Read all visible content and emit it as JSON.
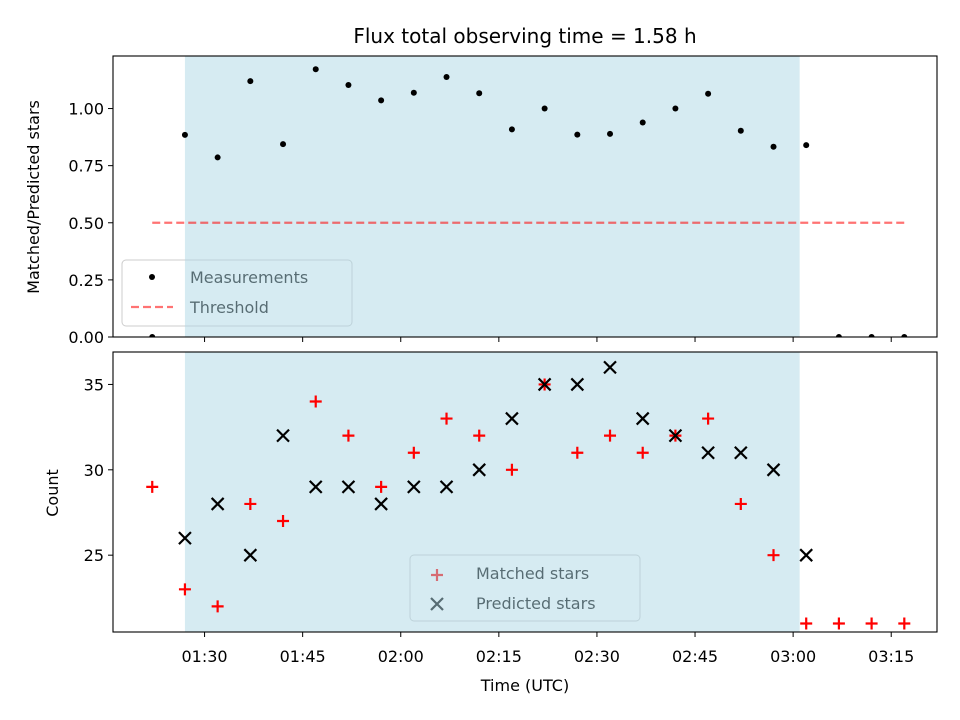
{
  "title": "Flux total observing time = 1.58 h",
  "colors": {
    "shade": "#add8e6",
    "threshold": "#ff0000",
    "measurement": "#000000",
    "matched": "#ff0000",
    "predicted": "#000000"
  },
  "chart_data": [
    {
      "type": "scatter",
      "ylabel": "Matched/Predicted stars",
      "ylim": [
        0.0,
        1.23
      ],
      "xlim": [
        "01:16",
        "03:22"
      ],
      "yticks": [
        0.0,
        0.25,
        0.5,
        0.75,
        1.0
      ],
      "ytick_labels": [
        "0.00",
        "0.25",
        "0.50",
        "0.75",
        "1.00"
      ],
      "shaded_span": [
        "01:27",
        "03:01"
      ],
      "legend_position": "lower-left",
      "series": [
        {
          "name": "Measurements",
          "marker": "dot",
          "x": [
            "01:22",
            "01:27",
            "01:32",
            "01:37",
            "01:42",
            "01:47",
            "01:52",
            "01:57",
            "02:02",
            "02:07",
            "02:12",
            "02:17",
            "02:22",
            "02:27",
            "02:32",
            "02:37",
            "02:42",
            "02:47",
            "02:52",
            "02:57",
            "03:02",
            "03:07",
            "03:12",
            "03:17"
          ],
          "y": [
            0.0,
            0.885,
            0.786,
            1.12,
            0.844,
            1.172,
            1.103,
            1.036,
            1.069,
            1.138,
            1.067,
            0.909,
            1.0,
            0.886,
            0.889,
            0.939,
            1.0,
            1.065,
            0.903,
            0.833,
            0.84,
            0.0,
            0.0,
            0.0
          ]
        },
        {
          "name": "Threshold",
          "style": "dashed",
          "x": [
            "01:22",
            "03:17"
          ],
          "y": [
            0.5,
            0.5
          ]
        }
      ]
    },
    {
      "type": "scatter",
      "ylabel": "Count",
      "xlabel": "Time (UTC)",
      "ylim": [
        20.5,
        36.9
      ],
      "xlim": [
        "01:16",
        "03:22"
      ],
      "yticks": [
        25,
        30,
        35
      ],
      "ytick_labels": [
        "25",
        "30",
        "35"
      ],
      "xticks": [
        "01:30",
        "01:45",
        "02:00",
        "02:15",
        "02:30",
        "02:45",
        "03:00",
        "03:15"
      ],
      "xtick_labels": [
        "01:30",
        "01:45",
        "02:00",
        "02:15",
        "02:30",
        "02:45",
        "03:00",
        "03:15"
      ],
      "shaded_span": [
        "01:27",
        "03:01"
      ],
      "legend_position": "lower-center",
      "series": [
        {
          "name": "Matched stars",
          "marker": "plus",
          "x": [
            "01:22",
            "01:27",
            "01:32",
            "01:37",
            "01:42",
            "01:47",
            "01:52",
            "01:57",
            "02:02",
            "02:07",
            "02:12",
            "02:17",
            "02:22",
            "02:27",
            "02:32",
            "02:37",
            "02:42",
            "02:47",
            "02:52",
            "02:57",
            "03:02",
            "03:07",
            "03:12",
            "03:17"
          ],
          "y": [
            29,
            23,
            22,
            28,
            27,
            34,
            32,
            29,
            31,
            33,
            32,
            30,
            35,
            31,
            32,
            31,
            32,
            33,
            28,
            25,
            21,
            21,
            21,
            21
          ]
        },
        {
          "name": "Predicted stars",
          "marker": "x",
          "x": [
            "01:27",
            "01:32",
            "01:37",
            "01:42",
            "01:47",
            "01:52",
            "01:57",
            "02:02",
            "02:07",
            "02:12",
            "02:17",
            "02:22",
            "02:27",
            "02:32",
            "02:37",
            "02:42",
            "02:47",
            "02:52",
            "02:57",
            "03:02"
          ],
          "y": [
            26,
            28,
            25,
            32,
            29,
            29,
            28,
            29,
            29,
            30,
            33,
            35,
            35,
            36,
            33,
            32,
            31,
            31,
            30,
            25
          ]
        }
      ]
    }
  ]
}
